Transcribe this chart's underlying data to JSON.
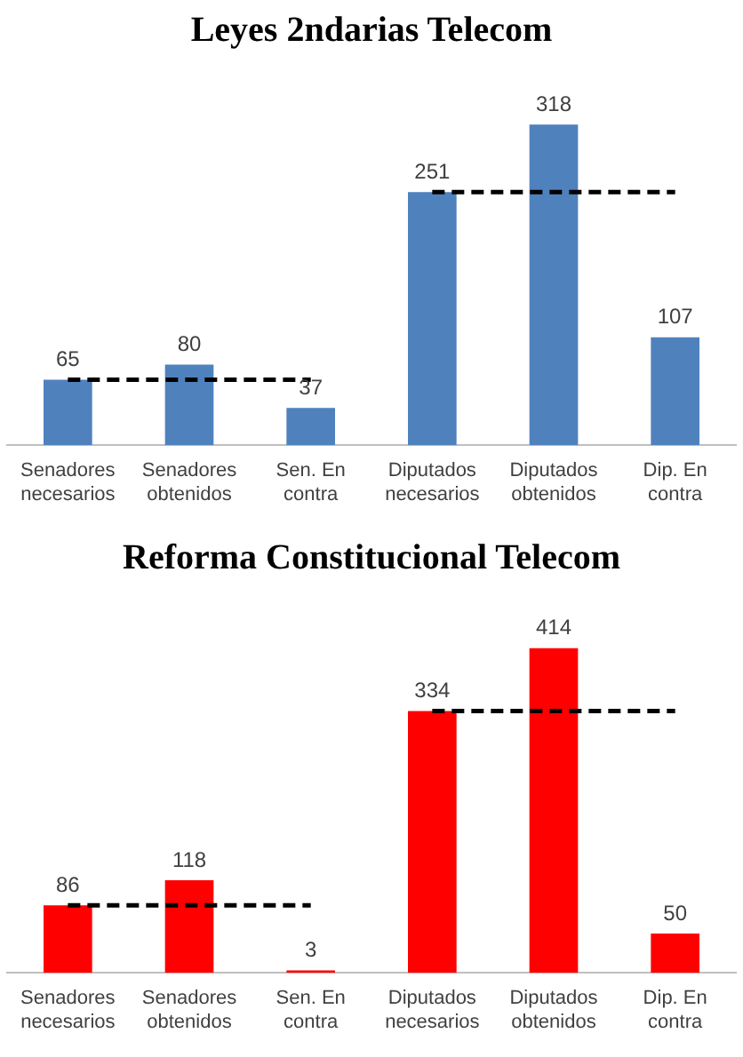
{
  "chart_data": [
    {
      "type": "bar",
      "title": "Leyes 2ndarias Telecom",
      "categories": [
        "Senadores necesarios",
        "Senadores obtenidos",
        "Sen. En contra",
        "Diputados necesarios",
        "Diputados obtenidos",
        "Dip. En contra"
      ],
      "legend": false,
      "grid": false,
      "series": [
        {
          "color": "#4f81bd",
          "values": [
            65,
            80,
            37,
            251,
            318,
            107
          ],
          "value_labels": [
            "65",
            "80",
            "37",
            "251",
            "318",
            "107"
          ]
        },
        {
          "type": "line",
          "color": "#000000",
          "line_style": "dashed",
          "marker": "none",
          "values": [
            65,
            65,
            65,
            null,
            null,
            null
          ]
        },
        {
          "type": "line",
          "color": "#000000",
          "line_style": "dashed",
          "marker": "none",
          "values": [
            null,
            null,
            null,
            251,
            251,
            251
          ]
        }
      ]
    },
    {
      "type": "bar",
      "title": "Reforma Constitucional Telecom",
      "categories": [
        "Senadores necesarios",
        "Senadores obtenidos",
        "Sen. En contra",
        "Diputados necesarios",
        "Diputados obtenidos",
        "Dip. En contra"
      ],
      "legend": false,
      "grid": false,
      "series": [
        {
          "color": "#ff0000",
          "values": [
            86,
            118,
            3,
            334,
            414,
            50
          ],
          "value_labels": [
            "86",
            "118",
            "3",
            "334",
            "414",
            "50"
          ]
        },
        {
          "type": "line",
          "color": "#000000",
          "line_style": "dashed",
          "marker": "none",
          "values": [
            86,
            86,
            86,
            null,
            null,
            null
          ]
        },
        {
          "type": "line",
          "color": "#000000",
          "line_style": "dashed",
          "marker": "none",
          "values": [
            null,
            null,
            null,
            334,
            334,
            334
          ]
        }
      ]
    }
  ]
}
